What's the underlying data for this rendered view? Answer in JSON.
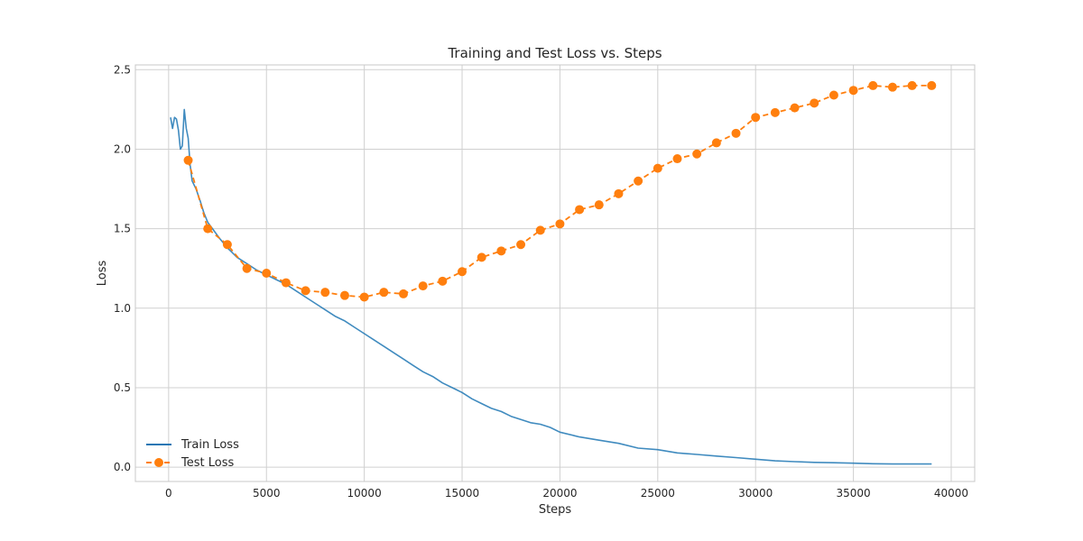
{
  "chart_data": {
    "type": "line",
    "title": "Training and Test Loss vs. Steps",
    "xlabel": "Steps",
    "ylabel": "Loss",
    "xlim": [
      -1700,
      41200
    ],
    "ylim": [
      -0.09,
      2.53
    ],
    "xticks": [
      0,
      5000,
      10000,
      15000,
      20000,
      25000,
      30000,
      35000,
      40000
    ],
    "yticks": [
      0.0,
      0.5,
      1.0,
      1.5,
      2.0,
      2.5
    ],
    "xtick_labels": [
      "0",
      "5000",
      "10000",
      "15000",
      "20000",
      "25000",
      "30000",
      "35000",
      "40000"
    ],
    "ytick_labels": [
      "0.0",
      "0.5",
      "1.0",
      "1.5",
      "2.0",
      "2.5"
    ],
    "grid": true,
    "legend_position": "lower-left",
    "series": [
      {
        "name": "Train Loss",
        "color": "#1f77b4",
        "style": "solid",
        "x": [
          100,
          200,
          300,
          400,
          500,
          600,
          700,
          800,
          900,
          1000,
          1100,
          1200,
          1400,
          1600,
          1800,
          2000,
          2300,
          2600,
          3000,
          3500,
          4000,
          4500,
          5000,
          5500,
          6000,
          6500,
          7000,
          7500,
          8000,
          8500,
          9000,
          9500,
          10000,
          10500,
          11000,
          11500,
          12000,
          12500,
          13000,
          13500,
          14000,
          14500,
          15000,
          15500,
          16000,
          16500,
          17000,
          17500,
          18000,
          18500,
          19000,
          19500,
          20000,
          21000,
          22000,
          23000,
          24000,
          25000,
          26000,
          27000,
          28000,
          29000,
          30000,
          31000,
          32000,
          33000,
          34000,
          35000,
          36000,
          37000,
          38000,
          39000
        ],
        "y": [
          2.2,
          2.13,
          2.2,
          2.19,
          2.12,
          2.0,
          2.02,
          2.25,
          2.13,
          2.07,
          1.9,
          1.8,
          1.75,
          1.68,
          1.6,
          1.54,
          1.49,
          1.44,
          1.38,
          1.32,
          1.28,
          1.24,
          1.21,
          1.18,
          1.15,
          1.11,
          1.07,
          1.03,
          0.99,
          0.95,
          0.92,
          0.88,
          0.84,
          0.8,
          0.76,
          0.72,
          0.68,
          0.64,
          0.6,
          0.57,
          0.53,
          0.5,
          0.47,
          0.43,
          0.4,
          0.37,
          0.35,
          0.32,
          0.3,
          0.28,
          0.27,
          0.25,
          0.22,
          0.19,
          0.17,
          0.15,
          0.12,
          0.11,
          0.09,
          0.08,
          0.07,
          0.06,
          0.05,
          0.04,
          0.035,
          0.03,
          0.028,
          0.025,
          0.022,
          0.02,
          0.02,
          0.02
        ]
      },
      {
        "name": "Test Loss",
        "color": "#ff7f0e",
        "style": "dashed",
        "marker": "circle",
        "x": [
          1000,
          2000,
          3000,
          4000,
          5000,
          6000,
          7000,
          8000,
          9000,
          10000,
          11000,
          12000,
          13000,
          14000,
          15000,
          16000,
          17000,
          18000,
          19000,
          20000,
          21000,
          22000,
          23000,
          24000,
          25000,
          26000,
          27000,
          28000,
          29000,
          30000,
          31000,
          32000,
          33000,
          34000,
          35000,
          36000,
          37000,
          38000,
          39000
        ],
        "y": [
          1.93,
          1.5,
          1.4,
          1.25,
          1.22,
          1.16,
          1.11,
          1.1,
          1.08,
          1.07,
          1.1,
          1.09,
          1.14,
          1.17,
          1.23,
          1.32,
          1.36,
          1.4,
          1.49,
          1.53,
          1.62,
          1.65,
          1.72,
          1.8,
          1.88,
          1.94,
          1.97,
          2.04,
          2.1,
          2.2,
          2.23,
          2.26,
          2.29,
          2.34,
          2.37,
          2.4,
          2.39,
          2.4,
          2.4
        ]
      }
    ]
  }
}
